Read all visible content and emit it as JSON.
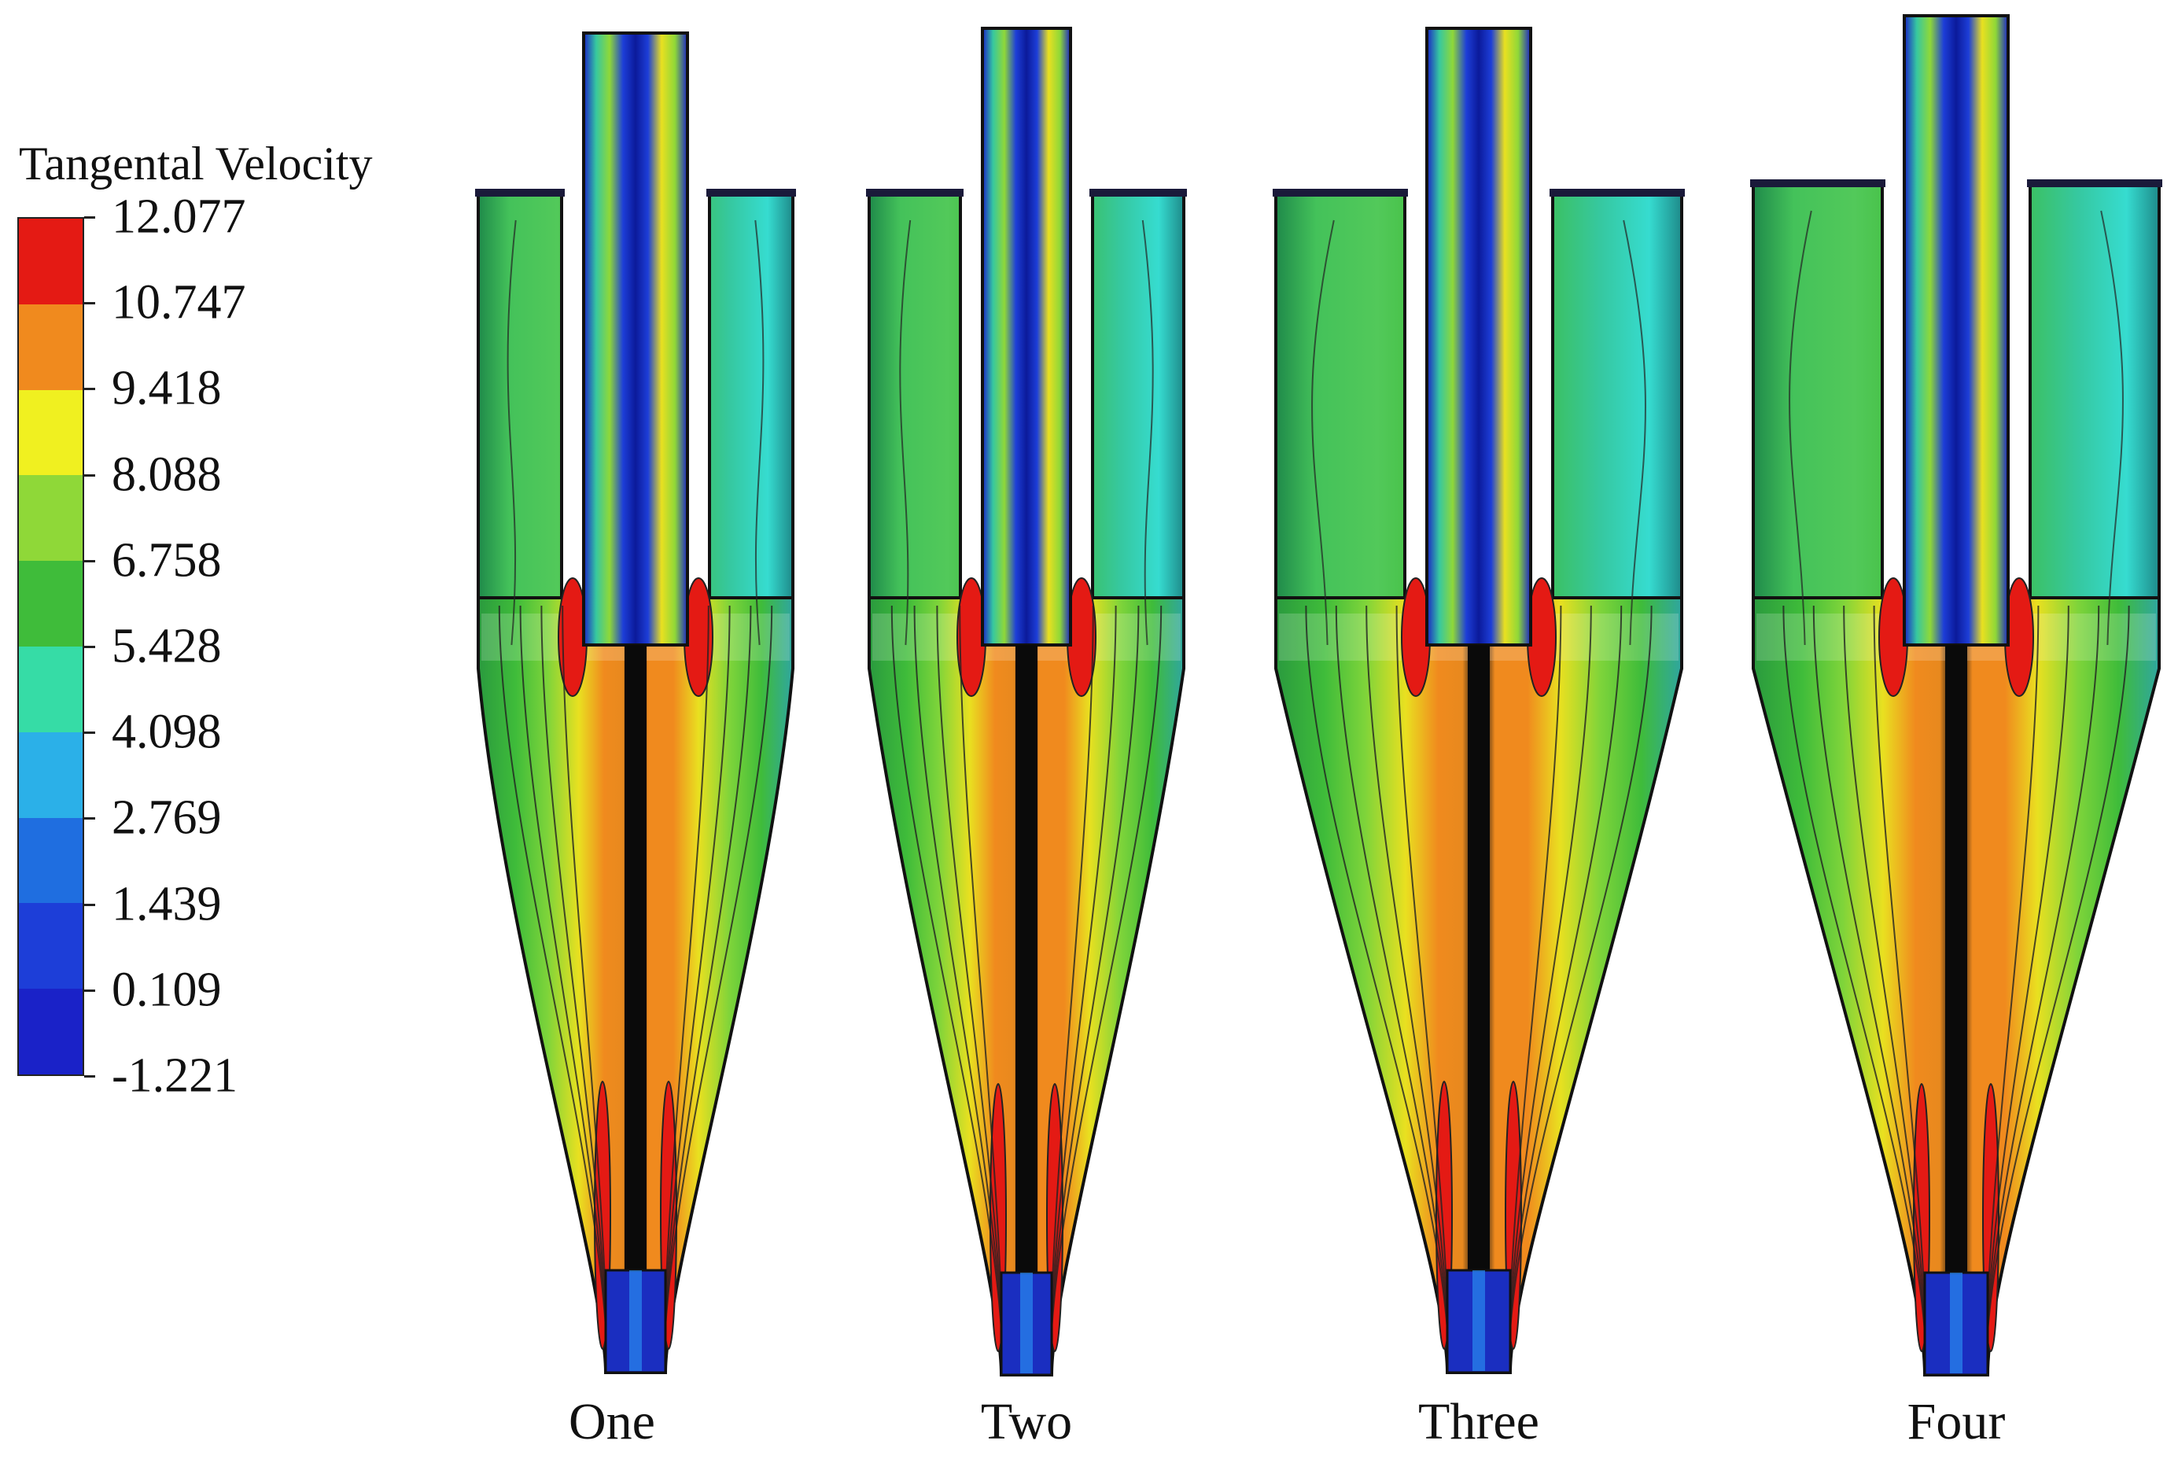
{
  "legend": {
    "title": "Tangental Velocity",
    "ticks": [
      "12.077",
      "10.747",
      "9.418",
      "8.088",
      "6.758",
      "5.428",
      "4.098",
      "2.769",
      "1.439",
      "0.109",
      "-1.221"
    ],
    "colors": [
      "#e41a14",
      "#f08a1e",
      "#f0f020",
      "#8fd838",
      "#3fbc3a",
      "#36dca6",
      "#2bb0e8",
      "#1f6ee0",
      "#1d3ed8",
      "#1a22c8"
    ]
  },
  "cases": [
    {
      "label": "One"
    },
    {
      "label": "Two"
    },
    {
      "label": "Three"
    },
    {
      "label": "Four"
    }
  ]
}
